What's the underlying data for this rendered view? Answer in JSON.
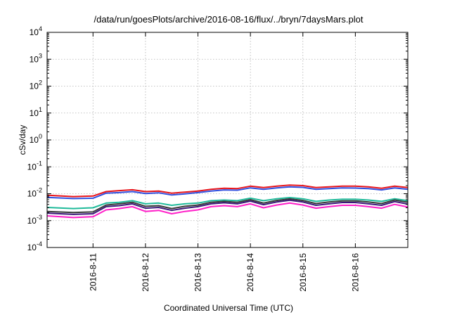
{
  "chart_data": {
    "type": "line",
    "title": "/data/run/goesPlots/archive/2016-08-16/flux/../bryn/7daysMars.plot",
    "xlabel": "Coordinated Universal Time (UTC)",
    "ylabel": "cSv/day",
    "y_scale": "log",
    "ylim": [
      0.0001,
      10000
    ],
    "y_ticks": [
      {
        "base": "10",
        "exp": "4"
      },
      {
        "base": "10",
        "exp": "3"
      },
      {
        "base": "10",
        "exp": "2"
      },
      {
        "base": "10",
        "exp": "1"
      },
      {
        "base": "10",
        "exp": "0"
      },
      {
        "base": "10",
        "exp": "-1"
      },
      {
        "base": "10",
        "exp": "-2"
      },
      {
        "base": "10",
        "exp": "-3"
      },
      {
        "base": "10",
        "exp": "-4"
      }
    ],
    "xlim": [
      "2016-08-10T03:00",
      "2016-08-17T00:00"
    ],
    "x_ticks": [
      "2016-8-11",
      "2016-8-12",
      "2016-8-13",
      "2016-8-14",
      "2016-8-15",
      "2016-8-16"
    ],
    "grid": true,
    "x": [
      "2016-08-10T03:00",
      "2016-08-10T15:00",
      "2016-08-11T00:00",
      "2016-08-11T06:00",
      "2016-08-11T12:00",
      "2016-08-11T18:00",
      "2016-08-12T00:00",
      "2016-08-12T06:00",
      "2016-08-12T12:00",
      "2016-08-12T18:00",
      "2016-08-13T00:00",
      "2016-08-13T06:00",
      "2016-08-13T12:00",
      "2016-08-13T18:00",
      "2016-08-14T00:00",
      "2016-08-14T06:00",
      "2016-08-14T12:00",
      "2016-08-14T18:00",
      "2016-08-15T00:00",
      "2016-08-15T06:00",
      "2016-08-15T12:00",
      "2016-08-15T18:00",
      "2016-08-16T00:00",
      "2016-08-16T06:00",
      "2016-08-16T12:00",
      "2016-08-16T18:00",
      "2016-08-17T00:00"
    ],
    "series": [
      {
        "color": "#e8141a",
        "values": [
          0.0088,
          0.0078,
          0.0082,
          0.012,
          0.013,
          0.014,
          0.012,
          0.0125,
          0.0105,
          0.0115,
          0.0125,
          0.0145,
          0.016,
          0.0155,
          0.019,
          0.017,
          0.019,
          0.021,
          0.02,
          0.017,
          0.018,
          0.019,
          0.019,
          0.018,
          0.016,
          0.019,
          0.017
        ]
      },
      {
        "color": "#3050e0",
        "values": [
          0.0073,
          0.0066,
          0.0068,
          0.0105,
          0.011,
          0.012,
          0.0102,
          0.0108,
          0.009,
          0.0098,
          0.011,
          0.0125,
          0.0138,
          0.0135,
          0.0165,
          0.0145,
          0.0165,
          0.018,
          0.0172,
          0.0145,
          0.0155,
          0.0165,
          0.0162,
          0.0155,
          0.0138,
          0.0165,
          0.0145
        ]
      },
      {
        "color": "#1fba9a",
        "values": [
          0.0031,
          0.0028,
          0.003,
          0.0045,
          0.0048,
          0.0055,
          0.0042,
          0.0045,
          0.0037,
          0.0042,
          0.0045,
          0.0055,
          0.0058,
          0.0055,
          0.0068,
          0.0055,
          0.0065,
          0.0072,
          0.0065,
          0.0052,
          0.0058,
          0.0062,
          0.0062,
          0.0058,
          0.0052,
          0.0065,
          0.0055
        ]
      },
      {
        "color": "#3a3a3a",
        "values": [
          0.0022,
          0.002,
          0.0021,
          0.0038,
          0.0042,
          0.0048,
          0.0034,
          0.0036,
          0.0028,
          0.0034,
          0.0038,
          0.0048,
          0.0052,
          0.0048,
          0.006,
          0.0045,
          0.0056,
          0.0064,
          0.0056,
          0.0043,
          0.0049,
          0.0054,
          0.0054,
          0.0049,
          0.0043,
          0.0058,
          0.0048
        ]
      },
      {
        "color": "#3d1a7a",
        "values": [
          0.0019,
          0.0017,
          0.0018,
          0.0033,
          0.0036,
          0.0042,
          0.0029,
          0.0031,
          0.0024,
          0.0029,
          0.0033,
          0.0042,
          0.0046,
          0.0042,
          0.0053,
          0.0039,
          0.0049,
          0.0057,
          0.0049,
          0.0037,
          0.0042,
          0.0047,
          0.0047,
          0.0042,
          0.0037,
          0.0051,
          0.0041
        ]
      },
      {
        "color": "#ff1ec8",
        "values": [
          0.0015,
          0.0013,
          0.0014,
          0.0025,
          0.0028,
          0.0033,
          0.0022,
          0.0024,
          0.0018,
          0.0022,
          0.0025,
          0.0033,
          0.0036,
          0.0033,
          0.0042,
          0.003,
          0.0038,
          0.0045,
          0.0038,
          0.0029,
          0.0033,
          0.0037,
          0.0037,
          0.0033,
          0.0029,
          0.004,
          0.0032
        ]
      }
    ]
  }
}
